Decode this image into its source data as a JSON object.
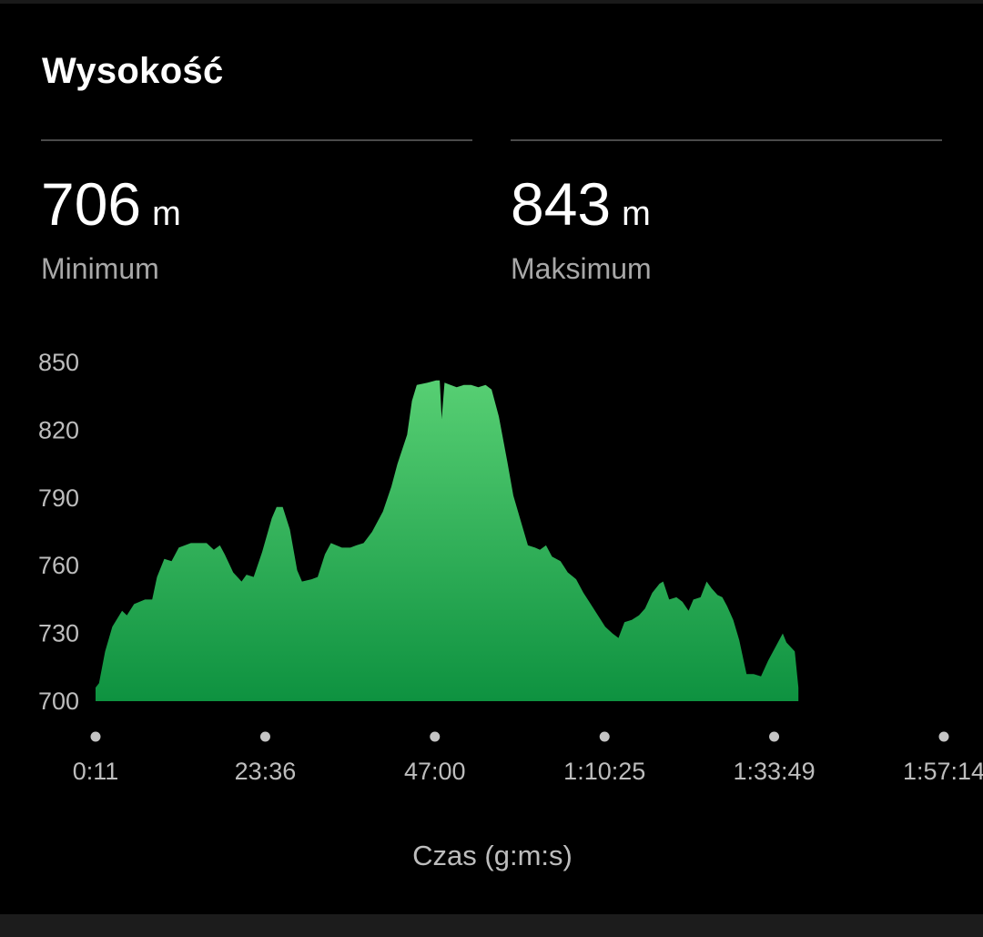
{
  "card": {
    "title": "Wysokość"
  },
  "stats": {
    "min": {
      "value": "706",
      "unit": "m",
      "label": "Minimum"
    },
    "max": {
      "value": "843",
      "unit": "m",
      "label": "Maksimum"
    }
  },
  "colors": {
    "background": "#000000",
    "fill_top": "#57cf73",
    "fill_bottom": "#0e9240",
    "text_muted": "#bdbdbd",
    "divider": "#4a4a4a"
  },
  "chart_data": {
    "type": "area",
    "xlabel": "Czas (g:m:s)",
    "ylabel": "",
    "ylim": [
      700,
      850
    ],
    "xlim": [
      11,
      7034
    ],
    "y_ticks": [
      850,
      820,
      790,
      760,
      730,
      700
    ],
    "x_ticks": [
      {
        "value": 11,
        "label": "0:11"
      },
      {
        "value": 1416,
        "label": "23:36"
      },
      {
        "value": 2820,
        "label": "47:00"
      },
      {
        "value": 4225,
        "label": "1:10:25"
      },
      {
        "value": 5629,
        "label": "1:33:49"
      },
      {
        "value": 7034,
        "label": "1:57:14"
      }
    ],
    "grid": false,
    "x_unit": "seconds",
    "series": [
      {
        "values": [
          [
            11,
            706
          ],
          [
            40,
            708
          ],
          [
            90,
            722
          ],
          [
            150,
            733
          ],
          [
            230,
            740
          ],
          [
            270,
            738
          ],
          [
            330,
            743
          ],
          [
            420,
            745
          ],
          [
            480,
            745
          ],
          [
            520,
            755
          ],
          [
            580,
            763
          ],
          [
            640,
            762
          ],
          [
            700,
            768
          ],
          [
            800,
            770
          ],
          [
            930,
            770
          ],
          [
            990,
            767
          ],
          [
            1040,
            769
          ],
          [
            1080,
            765
          ],
          [
            1150,
            757
          ],
          [
            1220,
            753
          ],
          [
            1260,
            756
          ],
          [
            1320,
            755
          ],
          [
            1390,
            766
          ],
          [
            1470,
            781
          ],
          [
            1510,
            786
          ],
          [
            1560,
            786
          ],
          [
            1620,
            776
          ],
          [
            1680,
            758
          ],
          [
            1720,
            753
          ],
          [
            1800,
            754
          ],
          [
            1850,
            755
          ],
          [
            1910,
            765
          ],
          [
            1960,
            770
          ],
          [
            2050,
            768
          ],
          [
            2120,
            768
          ],
          [
            2170,
            769
          ],
          [
            2230,
            770
          ],
          [
            2300,
            775
          ],
          [
            2390,
            784
          ],
          [
            2460,
            795
          ],
          [
            2510,
            805
          ],
          [
            2590,
            818
          ],
          [
            2630,
            833
          ],
          [
            2670,
            840
          ],
          [
            2760,
            841
          ],
          [
            2830,
            842
          ],
          [
            2860,
            842
          ],
          [
            2877,
            825
          ],
          [
            2900,
            841
          ],
          [
            2950,
            840
          ],
          [
            3000,
            839
          ],
          [
            3060,
            840
          ],
          [
            3120,
            840
          ],
          [
            3180,
            839
          ],
          [
            3240,
            840
          ],
          [
            3290,
            838
          ],
          [
            3350,
            826
          ],
          [
            3420,
            806
          ],
          [
            3470,
            791
          ],
          [
            3530,
            780
          ],
          [
            3590,
            769
          ],
          [
            3650,
            768
          ],
          [
            3690,
            767
          ],
          [
            3740,
            769
          ],
          [
            3790,
            764
          ],
          [
            3860,
            762
          ],
          [
            3920,
            757
          ],
          [
            3990,
            754
          ],
          [
            4050,
            748
          ],
          [
            4110,
            743
          ],
          [
            4170,
            738
          ],
          [
            4230,
            733
          ],
          [
            4290,
            730
          ],
          [
            4340,
            728
          ],
          [
            4390,
            735
          ],
          [
            4450,
            736
          ],
          [
            4510,
            738
          ],
          [
            4560,
            741
          ],
          [
            4620,
            748
          ],
          [
            4680,
            752
          ],
          [
            4710,
            753
          ],
          [
            4760,
            745
          ],
          [
            4820,
            746
          ],
          [
            4870,
            744
          ],
          [
            4920,
            740
          ],
          [
            4960,
            745
          ],
          [
            5020,
            746
          ],
          [
            5070,
            753
          ],
          [
            5110,
            750
          ],
          [
            5160,
            747
          ],
          [
            5200,
            746
          ],
          [
            5240,
            742
          ],
          [
            5290,
            736
          ],
          [
            5340,
            727
          ],
          [
            5400,
            712
          ],
          [
            5460,
            712
          ],
          [
            5520,
            711
          ],
          [
            5580,
            718
          ],
          [
            5640,
            724
          ],
          [
            5700,
            730
          ],
          [
            5730,
            726
          ],
          [
            5800,
            722
          ],
          [
            5830,
            706
          ]
        ]
      }
    ]
  }
}
